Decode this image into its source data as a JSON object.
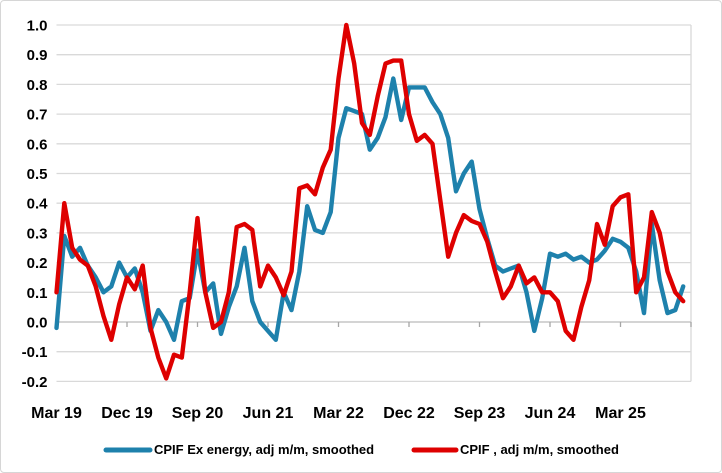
{
  "chart_data": {
    "type": "line",
    "title": "",
    "xlabel": "",
    "ylabel": "",
    "grid": true,
    "legend_position": "bottom",
    "x_axis": {
      "unit": "month",
      "tick_labels": [
        "Mar 19",
        "Dec 19",
        "Sep 20",
        "Jun 21",
        "Mar 22",
        "Dec 22",
        "Sep 23",
        "Jun 24",
        "Mar 25"
      ],
      "tick_interval_months": 9,
      "total_month_slots": 81
    },
    "y_axis": {
      "min": -0.2,
      "max": 1.0,
      "step": 0.1,
      "tick_labels": [
        "1.0",
        "0.9",
        "0.8",
        "0.7",
        "0.6",
        "0.5",
        "0.4",
        "0.3",
        "0.2",
        "0.1",
        "0.0",
        "-0.1",
        "-0.2"
      ]
    },
    "series": [
      {
        "name": "CPIF Ex energy, adj m/m, smoothed",
        "color": "#1E81AC",
        "values": [
          -0.02,
          0.29,
          0.22,
          0.25,
          0.19,
          0.15,
          0.1,
          0.12,
          0.2,
          0.15,
          0.18,
          0.1,
          -0.03,
          0.04,
          0.0,
          -0.06,
          0.07,
          0.08,
          0.24,
          0.1,
          0.13,
          -0.04,
          0.05,
          0.12,
          0.25,
          0.07,
          0.0,
          -0.03,
          -0.06,
          0.1,
          0.04,
          0.17,
          0.39,
          0.31,
          0.3,
          0.37,
          0.62,
          0.72,
          0.71,
          0.7,
          0.58,
          0.62,
          0.69,
          0.82,
          0.68,
          0.79,
          0.79,
          0.79,
          0.74,
          0.7,
          0.62,
          0.44,
          0.5,
          0.54,
          0.38,
          0.28,
          0.19,
          0.17,
          0.18,
          0.19,
          0.1,
          -0.03,
          0.08,
          0.23,
          0.22,
          0.23,
          0.21,
          0.22,
          0.2,
          0.21,
          0.24,
          0.28,
          0.27,
          0.25,
          0.17,
          0.03,
          0.33,
          0.14,
          0.03,
          0.04,
          0.12
        ]
      },
      {
        "name": "CPIF , adj m/m, smoothed",
        "color": "#DE0000",
        "values": [
          0.1,
          0.4,
          0.25,
          0.21,
          0.19,
          0.12,
          0.02,
          -0.06,
          0.06,
          0.15,
          0.11,
          0.19,
          -0.02,
          -0.12,
          -0.19,
          -0.11,
          -0.12,
          0.1,
          0.35,
          0.1,
          -0.02,
          0.0,
          0.1,
          0.32,
          0.33,
          0.31,
          0.12,
          0.19,
          0.15,
          0.09,
          0.17,
          0.45,
          0.46,
          0.43,
          0.52,
          0.58,
          0.82,
          1.0,
          0.87,
          0.67,
          0.63,
          0.76,
          0.87,
          0.88,
          0.88,
          0.7,
          0.61,
          0.63,
          0.6,
          0.41,
          0.22,
          0.3,
          0.36,
          0.34,
          0.33,
          0.27,
          0.17,
          0.08,
          0.12,
          0.19,
          0.13,
          0.15,
          0.1,
          0.1,
          0.07,
          -0.03,
          -0.06,
          0.05,
          0.14,
          0.33,
          0.26,
          0.39,
          0.42,
          0.43,
          0.1,
          0.15,
          0.37,
          0.3,
          0.17,
          0.1,
          0.07
        ]
      }
    ],
    "colors": {
      "gridline": "#d9d9d9",
      "axis_line": "#bfbfbf",
      "tick_mark": "#a6a6a6",
      "label_text": "#000000",
      "background": "#ffffff"
    }
  },
  "legend": {
    "items": [
      {
        "label": "CPIF Ex energy, adj m/m, smoothed",
        "color": "#1E81AC"
      },
      {
        "label": "CPIF , adj m/m, smoothed",
        "color": "#DE0000"
      }
    ]
  }
}
